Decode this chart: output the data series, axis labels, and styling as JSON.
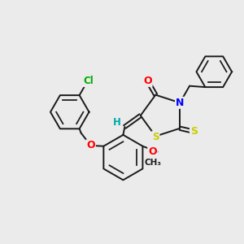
{
  "bg_color": "#ebebeb",
  "bond_color": "#1a1a1a",
  "atom_colors": {
    "O": "#ff0000",
    "N": "#0000ff",
    "S": "#cccc00",
    "Cl": "#00aa00",
    "H": "#00aaaa",
    "C": "#1a1a1a"
  },
  "figsize": [
    3.0,
    3.0
  ],
  "dpi": 100
}
